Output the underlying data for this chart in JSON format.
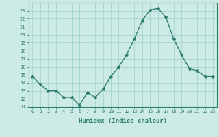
{
  "x": [
    0,
    1,
    2,
    3,
    4,
    5,
    6,
    7,
    8,
    9,
    10,
    11,
    12,
    13,
    14,
    15,
    16,
    17,
    18,
    19,
    20,
    21,
    22,
    23
  ],
  "y": [
    14.8,
    13.8,
    13.0,
    13.0,
    12.2,
    12.2,
    11.2,
    12.8,
    12.2,
    13.2,
    14.8,
    16.0,
    17.5,
    19.5,
    21.8,
    23.1,
    23.3,
    22.2,
    19.5,
    17.5,
    15.8,
    15.5,
    14.8,
    14.8
  ],
  "xlabel": "Humidex (Indice chaleur)",
  "xlim": [
    -0.5,
    23.5
  ],
  "ylim": [
    11,
    24
  ],
  "yticks": [
    11,
    12,
    13,
    14,
    15,
    16,
    17,
    18,
    19,
    20,
    21,
    22,
    23
  ],
  "xticks": [
    0,
    1,
    2,
    3,
    4,
    5,
    6,
    7,
    8,
    9,
    10,
    11,
    12,
    13,
    14,
    15,
    16,
    17,
    18,
    19,
    20,
    21,
    22,
    23
  ],
  "line_color": "#2e7d6e",
  "marker": "*",
  "bg_color": "#cceae6",
  "grid_color": "#a0cfc9",
  "tick_color": "#2e7d6e",
  "label_color": "#2e7d6e"
}
